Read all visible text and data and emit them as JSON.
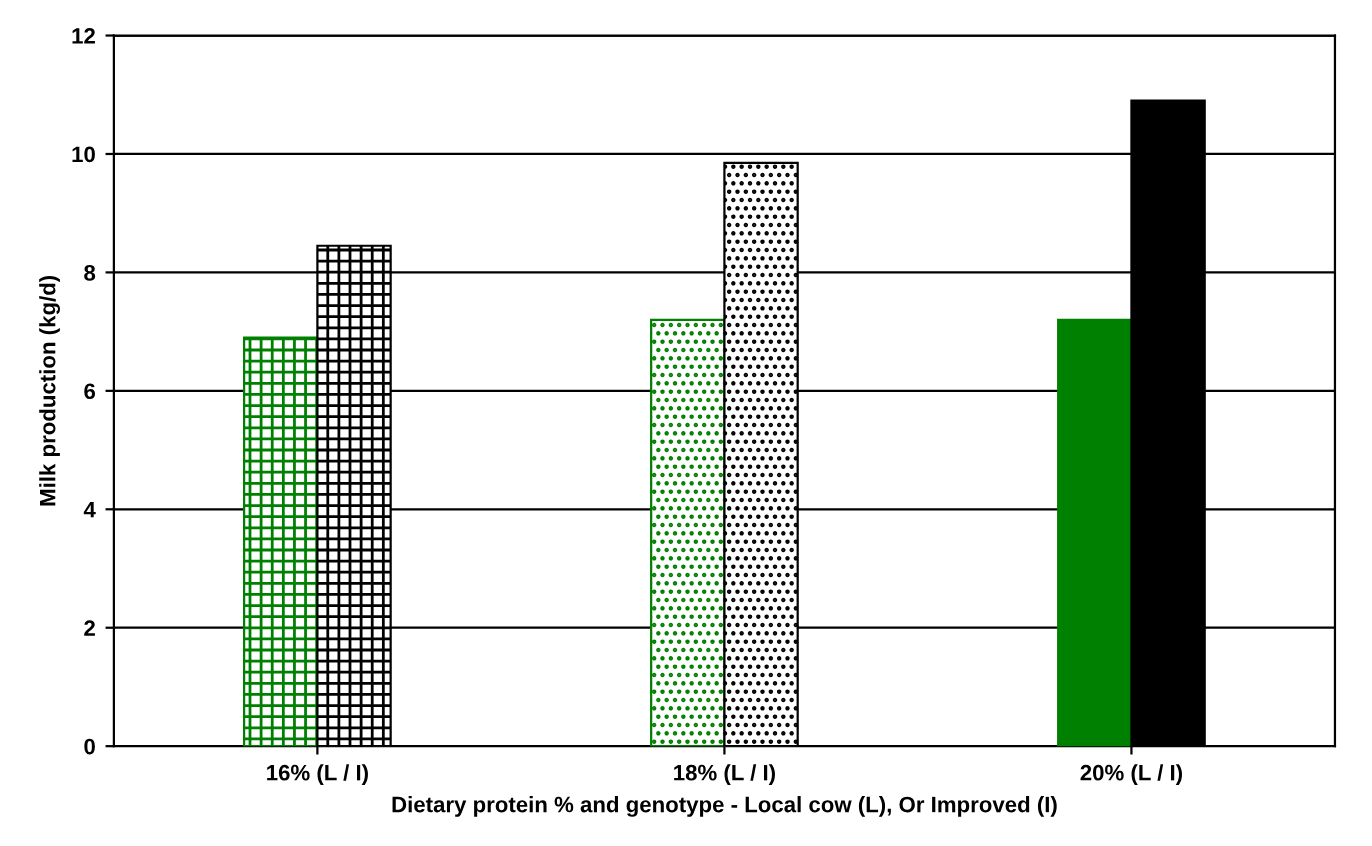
{
  "chart_data": {
    "type": "bar",
    "xlabel": "Dietary protein % and genotype - Local cow (L), Or Improved (I)",
    "ylabel": "Milk production (kg/d)",
    "categories": [
      "16% (L / I)",
      "18% (L / I)",
      "20% (L / I)"
    ],
    "series": [
      {
        "color": "#008000",
        "values": [
          6.9,
          7.2,
          7.2
        ]
      },
      {
        "color": "#000000",
        "values": [
          8.45,
          9.85,
          10.9
        ]
      }
    ],
    "ylim": [
      0,
      12
    ],
    "yticks": [
      0,
      2,
      4,
      6,
      8,
      10,
      12
    ],
    "grid": "y",
    "legend": false
  }
}
